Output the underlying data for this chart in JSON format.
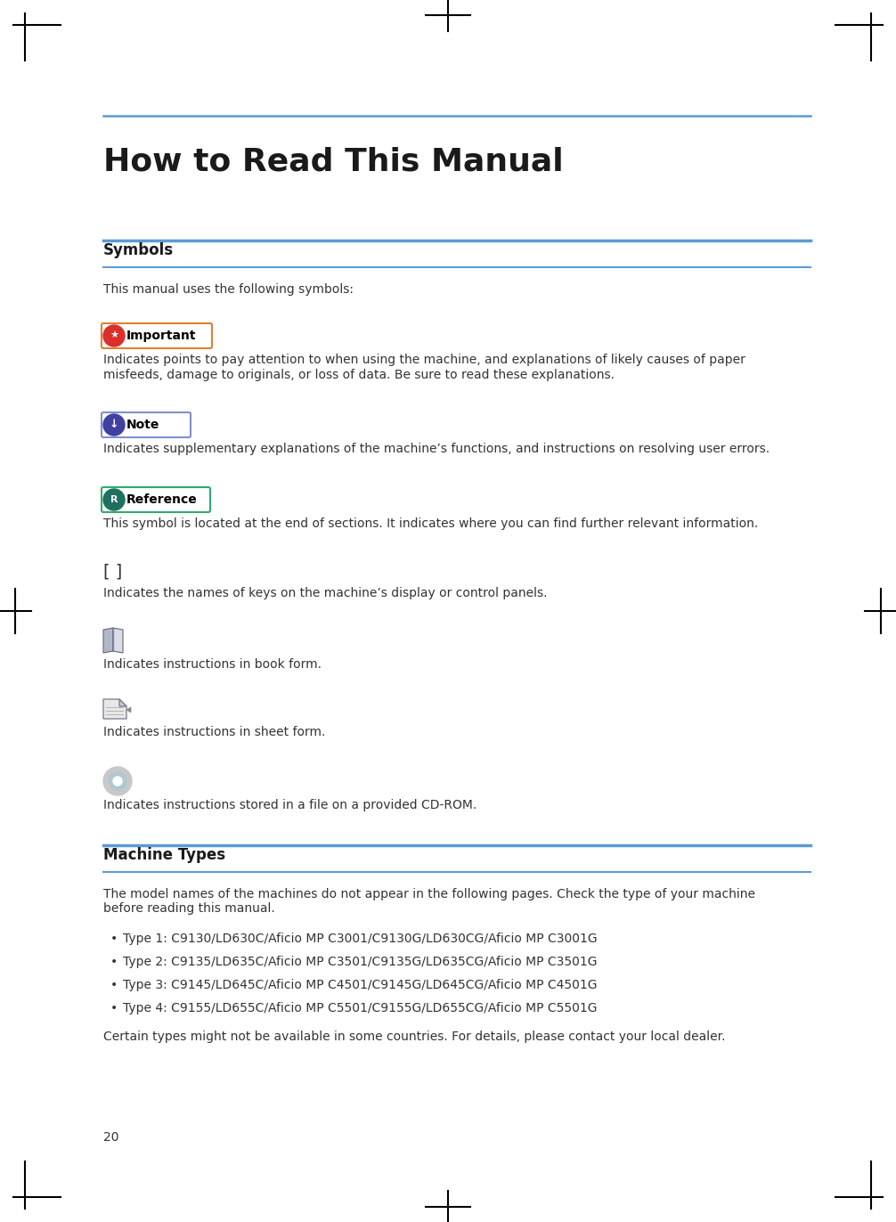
{
  "title": "How to Read This Manual",
  "bg_color": "#ffffff",
  "title_color": "#1a1a1a",
  "section1_title": "Symbols",
  "section2_title": "Machine Types",
  "intro_text": "This manual uses the following symbols:",
  "important_label": "Important",
  "important_text1": "Indicates points to pay attention to when using the machine, and explanations of likely causes of paper",
  "important_text2": "misfeeds, damage to originals, or loss of data. Be sure to read these explanations.",
  "note_label": "Note",
  "note_text": "Indicates supplementary explanations of the machine’s functions, and instructions on resolving user errors.",
  "reference_label": "Reference",
  "reference_text": "This symbol is located at the end of sections. It indicates where you can find further relevant information.",
  "bracket_label": "[ ]",
  "bracket_text": "Indicates the names of keys on the machine’s display or control panels.",
  "book_text": "Indicates instructions in book form.",
  "sheet_text": "Indicates instructions in sheet form.",
  "cdrom_text": "Indicates instructions stored in a file on a provided CD-ROM.",
  "machine_intro1": "The model names of the machines do not appear in the following pages. Check the type of your machine",
  "machine_intro2": "before reading this manual.",
  "machine_types": [
    "Type 1: C9130/LD630C/Aficio MP C3001/C9130G/LD630CG/Aficio MP C3001G",
    "Type 2: C9135/LD635C/Aficio MP C3501/C9135G/LD635CG/Aficio MP C3501G",
    "Type 3: C9145/LD645C/Aficio MP C4501/C9145G/LD645CG/Aficio MP C4501G",
    "Type 4: C9155/LD655C/Aficio MP C5501/C9155G/LD655CG/Aficio MP C5501G"
  ],
  "footer_text": "Certain types might not be available in some countries. For details, please contact your local dealer.",
  "page_number": "20",
  "important_bg": "#d9302c",
  "note_bg": "#4040a0",
  "reference_bg": "#207060",
  "line_color": "#5b9bd5",
  "text_color": "#333333",
  "lm": 0.115,
  "rm": 0.905
}
